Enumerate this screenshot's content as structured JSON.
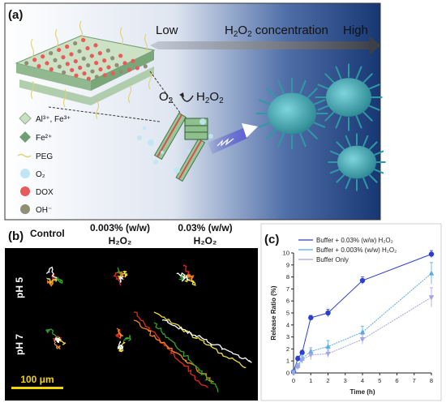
{
  "panel_a": {
    "tag": "(a)",
    "gradient_label": {
      "low": "Low",
      "title_pre": "H",
      "title_sub": "2",
      "title_mid": "O",
      "title_sub2": "2",
      "title_post": " concentration",
      "high": "High"
    },
    "reaction": {
      "o2_pre": "O",
      "o2_sub": "2",
      "h2o2_pre": "H",
      "h2o2_sub": "2",
      "h2o2_mid": "O",
      "h2o2_sub2": "2"
    },
    "legend": [
      {
        "text": "Al³⁺, Fe³⁺",
        "color": "#c9dfc4",
        "shape": "diamond-light"
      },
      {
        "text": "Fe²⁺",
        "color": "#6f9e74",
        "shape": "diamond-dark"
      },
      {
        "text": "PEG",
        "color": "#e8df8a",
        "shape": "line"
      },
      {
        "text": "O₂",
        "color": "#bfe6f2",
        "shape": "circle"
      },
      {
        "text": "DOX",
        "color": "#e85b5b",
        "shape": "circle"
      },
      {
        "text": "OH⁻",
        "color": "#8f8f75",
        "shape": "circle"
      }
    ],
    "colors": {
      "bg_light": "#ffffff",
      "bg_dark": "#1a3a7a",
      "cell": "#3aa0a8",
      "arrow": "#555555"
    }
  },
  "panel_b": {
    "tag": "(b)",
    "col_headers": [
      {
        "line1": "Control",
        "line2": ""
      },
      {
        "line1": "0.003% (w/w)",
        "line2": "H₂O₂"
      },
      {
        "line1": "0.03% (w/w)",
        "line2": "H₂O₂"
      }
    ],
    "row_labels": [
      "pH 5",
      "pH 7"
    ],
    "scale_bar": "100 μm",
    "colors": {
      "bg": "#000000",
      "scale": "#f1d600",
      "traj": [
        "#e02b1b",
        "#f3e13a",
        "#37a02a",
        "#f08a1e",
        "#ffffff"
      ]
    }
  },
  "panel_c": {
    "tag": "(c)"
  },
  "chart_data": {
    "type": "line",
    "title": "",
    "xlabel": "Time (h)",
    "ylabel": "Release Ratio (%)",
    "xlim": [
      0,
      8
    ],
    "ylim": [
      0,
      10
    ],
    "xticks": [
      0,
      1,
      2,
      3,
      4,
      5,
      6,
      7,
      8
    ],
    "yticks": [
      0,
      1,
      2,
      3,
      4,
      5,
      6,
      7,
      8,
      9,
      10
    ],
    "grid": false,
    "legend_position": "top-left",
    "x": [
      0,
      0.25,
      0.5,
      1,
      2,
      4,
      8
    ],
    "series": [
      {
        "name": "Buffer + 0.03% (w/w) H₂O₂",
        "values": [
          0.1,
          1.2,
          1.7,
          4.6,
          5.0,
          7.7,
          9.9
        ],
        "errors": [
          0.1,
          0.2,
          0.2,
          0.2,
          0.3,
          0.3,
          0.3
        ],
        "color": "#2b3fcf",
        "marker": "circle"
      },
      {
        "name": "Buffer + 0.003% (w/w) H₂O₂",
        "values": [
          0.1,
          0.6,
          1.2,
          1.8,
          2.2,
          3.4,
          8.3
        ],
        "errors": [
          0.1,
          0.2,
          0.3,
          0.3,
          0.5,
          0.5,
          0.9
        ],
        "color": "#59a9e3",
        "marker": "triangle-up"
      },
      {
        "name": "Buffer Only",
        "values": [
          0.05,
          0.5,
          1.1,
          1.5,
          1.6,
          2.8,
          6.3
        ],
        "errors": [
          0.1,
          0.2,
          0.3,
          0.4,
          0.3,
          0.4,
          0.8
        ],
        "color": "#a2a2e8",
        "marker": "triangle-down"
      }
    ]
  }
}
